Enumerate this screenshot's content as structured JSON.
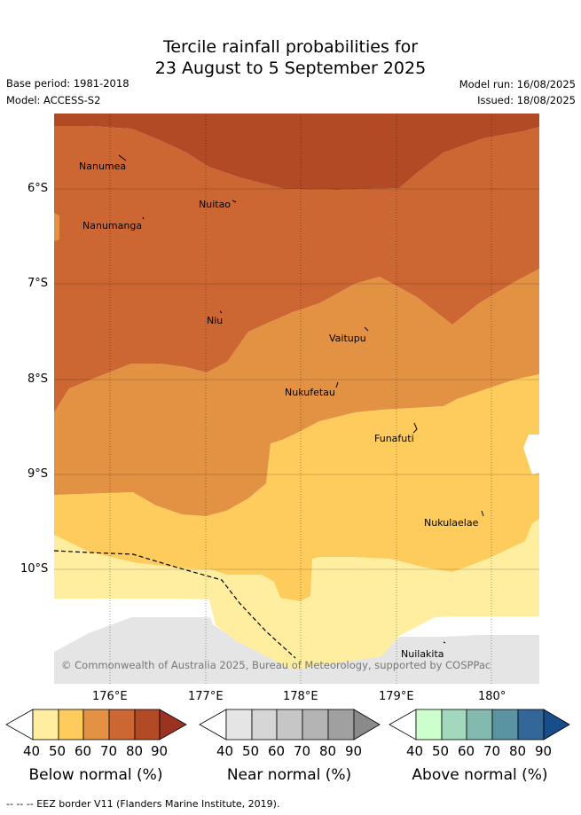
{
  "header": {
    "title_line1": "Tercile rainfall probabilities for",
    "title_line2": "23 August to 5 September 2025",
    "base_period": "Base period: 1981-2018",
    "model": "Model: ACCESS-S2",
    "model_run": "Model run: 16/08/2025",
    "issued": "Issued: 18/08/2025"
  },
  "map": {
    "y_ticks": [
      "6°S",
      "7°S",
      "8°S",
      "9°S",
      "10°S"
    ],
    "x_ticks": [
      "176°E",
      "177°E",
      "178°E",
      "179°E",
      "180°"
    ],
    "places": {
      "nanumea": "Nanumea",
      "nuitao": "Nuitao",
      "nanumanga": "Nanumanga",
      "niu": "Niu",
      "vaitupu": "Vaitupu",
      "nukufetau": "Nukufetau",
      "funafuti": "Funafuti",
      "nukulaelae": "Nukulaelae",
      "nuilakita": "Nuilakita"
    },
    "copyright": "© Commonwealth of Australia 2025, Bureau of Meteorology, supported by COSPPac"
  },
  "colorbars": {
    "ticks": [
      "40",
      "50",
      "60",
      "70",
      "80",
      "90"
    ],
    "below": {
      "label": "Below normal (%)",
      "colors": [
        "#ffeda0",
        "#fecc5c",
        "#e39244",
        "#cc6633",
        "#b34a26",
        "#9b3322"
      ]
    },
    "near": {
      "label": "Near normal (%)",
      "colors": [
        "#e5e5e5",
        "#d6d6d6",
        "#c6c6c6",
        "#b4b4b4",
        "#a0a0a0",
        "#8a8a8a"
      ]
    },
    "above": {
      "label": "Above normal (%)",
      "colors": [
        "#ccffcc",
        "#a2d8bc",
        "#84b9b0",
        "#5a94a3",
        "#336699",
        "#174e89"
      ]
    }
  },
  "footnote": "--  --  -- EEZ border V11 (Flanders Marine Institute, 2019)."
}
